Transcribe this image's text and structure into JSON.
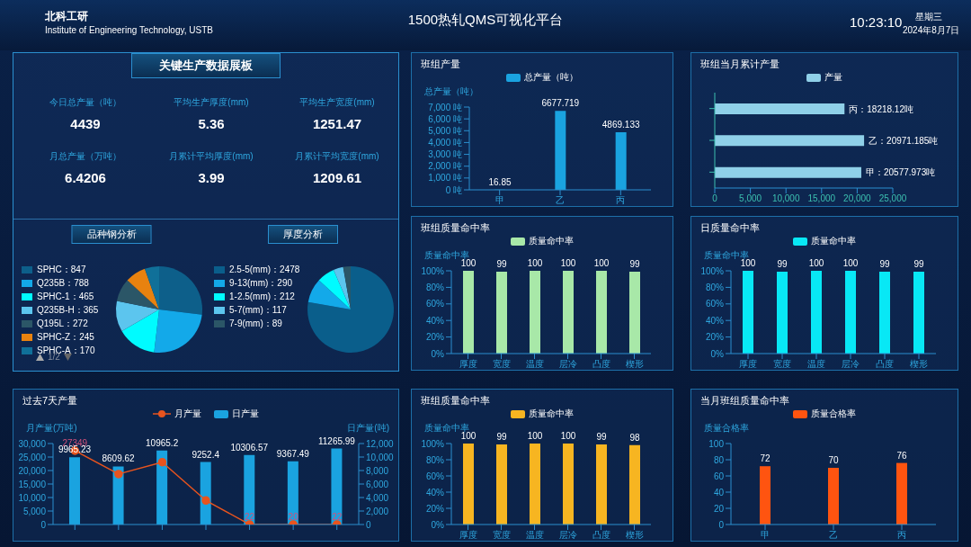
{
  "chart_data": [
    {
      "type": "other",
      "title": "1500热轧QMS可视化平台",
      "annotations": [
        "北科工研",
        "Institute of Engineering Technology, USTB",
        "10:23:10",
        "星期三",
        "2024年8月7日"
      ]
    },
    {
      "type": "other",
      "title": "关键生产数据展板",
      "annotations": [
        "今日总产量（吨）",
        "4439",
        "平均生产厚度(mm)",
        "5.36",
        "平均生产宽度(mm)",
        "1251.47",
        "月总产量（万吨）",
        "6.4206",
        "月累计平均厚度(mm)",
        "3.99",
        "月累计平均宽度(mm)",
        "1209.61"
      ]
    },
    {
      "type": "pie",
      "title": "品种钢分析",
      "categories": [
        "SPHC：847",
        "Q235B：788",
        "SPHC-1：465",
        "Q235B-H：365",
        "Q195L：272",
        "SPHC-Z：245",
        "SPHC-A：170"
      ],
      "values": [
        847,
        788,
        465,
        365,
        272,
        245,
        170
      ],
      "colors": [
        "#0d5f8a",
        "#13a9e9",
        "#00fbff",
        "#5cc5ee",
        "#2b5667",
        "#e8820f",
        "#107099"
      ],
      "legend": "left",
      "annotations": [
        "1/2"
      ]
    },
    {
      "type": "pie",
      "title": "厚度分析",
      "categories": [
        "2.5-5(mm)：2478",
        "9-13(mm)：290",
        "1-2.5(mm)：212",
        "5-7(mm)：117",
        "7-9(mm)：89"
      ],
      "values": [
        2478,
        290,
        212,
        117,
        89
      ],
      "colors": [
        "#0a5e8b",
        "#13a9e9",
        "#00fbff",
        "#5cc5ee",
        "#2b5667"
      ],
      "legend": "left"
    },
    {
      "type": "bar",
      "title": "班组产量",
      "ylabel": "总产量（吨）",
      "categories": [
        "甲",
        "乙",
        "丙"
      ],
      "series": [
        {
          "name": "总产量（吨）",
          "color": "#1aa3e0",
          "values": [
            16.85,
            6677.719,
            4869.133
          ]
        }
      ],
      "ylim": [
        0,
        7000
      ],
      "yticks": [
        {
          "value": 0,
          "label": "0 吨"
        },
        {
          "value": 1000,
          "label": "1,000 吨"
        },
        {
          "value": 2000,
          "label": "2,000 吨"
        },
        {
          "value": 3000,
          "label": "3,000 吨"
        },
        {
          "value": 4000,
          "label": "4,000 吨"
        },
        {
          "value": 5000,
          "label": "5,000 吨"
        },
        {
          "value": 6000,
          "label": "6,000 吨"
        },
        {
          "value": 7000,
          "label": "7,000 吨"
        }
      ],
      "data_labels": true,
      "legend": "top"
    },
    {
      "type": "bar",
      "orientation": "horizontal",
      "title": "班组当月累计产量",
      "categories": [
        null,
        null,
        null
      ],
      "series": [
        {
          "name": "产量",
          "color": "#8fd0e8",
          "values": [
            18218.12,
            20971.185,
            20577.973
          ],
          "value_labels": [
            "丙：18218.12吨",
            "乙：20971.185吨",
            "甲：20577.973吨"
          ]
        }
      ],
      "xlim": [
        0,
        25000
      ],
      "xticks": [
        0,
        {
          "value": 5000,
          "label": "5,000"
        },
        {
          "value": 10000,
          "label": "10,000"
        },
        {
          "value": 15000,
          "label": "15,000"
        },
        {
          "value": 20000,
          "label": "20,000"
        },
        {
          "value": 25000,
          "label": "25,000"
        }
      ],
      "legend": "top"
    },
    {
      "type": "bar",
      "title": "班组质量命中率",
      "ylabel": "质量命中率",
      "categories": [
        "厚度",
        "宽度",
        "温度",
        "层冷",
        "凸度",
        "楔形"
      ],
      "series": [
        {
          "name": "质量命中率",
          "color": "#a8e8a8",
          "values": [
            100,
            99,
            100,
            100,
            100,
            99
          ]
        }
      ],
      "ylim": [
        0,
        100
      ],
      "yticks": [
        {
          "value": 0,
          "label": "0%"
        },
        {
          "value": 20,
          "label": "20%"
        },
        {
          "value": 40,
          "label": "40%"
        },
        {
          "value": 60,
          "label": "60%"
        },
        {
          "value": 80,
          "label": "80%"
        },
        {
          "value": 100,
          "label": "100%"
        }
      ],
      "data_labels": true,
      "legend": "top"
    },
    {
      "type": "bar",
      "title": "日质量命中率",
      "ylabel": "质量命中率",
      "categories": [
        "厚度",
        "宽度",
        "温度",
        "层冷",
        "凸度",
        "楔形"
      ],
      "series": [
        {
          "name": "质量命中率",
          "color": "#08e8f5",
          "values": [
            100,
            99,
            100,
            100,
            99,
            99
          ]
        }
      ],
      "ylim": [
        0,
        100
      ],
      "yticks": [
        {
          "value": 0,
          "label": "0%"
        },
        {
          "value": 20,
          "label": "20%"
        },
        {
          "value": 40,
          "label": "40%"
        },
        {
          "value": 60,
          "label": "60%"
        },
        {
          "value": 80,
          "label": "80%"
        },
        {
          "value": 100,
          "label": "100%"
        }
      ],
      "data_labels": true,
      "legend": "top"
    },
    {
      "type": "bar",
      "title": "过去7天产量",
      "ylabel": "月产量(万吨)",
      "y2label": "日产量(吨)",
      "categories": [
        null,
        null,
        null,
        null,
        null,
        null,
        null
      ],
      "series": [
        {
          "name": "月产量",
          "type": "line",
          "color": "#e8541e",
          "values": [
            27349,
            18700,
            23100,
            8900,
            22,
            20,
            22
          ],
          "value_labels": [
            "27349",
            null,
            null,
            null,
            "22",
            "20",
            "22"
          ]
        },
        {
          "name": "日产量",
          "axis": "y2",
          "color": "#1aa3e0",
          "values": [
            9965.23,
            8609.62,
            10965.2,
            9252.4,
            10306.57,
            9367.49,
            11265.99
          ],
          "value_labels": [
            "9965.23",
            "8609.62",
            "10965.2",
            "9252.4",
            "10306.57",
            "9367.49",
            "11265.99"
          ]
        }
      ],
      "ylim": [
        0,
        30000
      ],
      "yticks": [
        0,
        {
          "value": 5000,
          "label": "5,000"
        },
        {
          "value": 10000,
          "label": "10,000"
        },
        {
          "value": 15000,
          "label": "15,000"
        },
        {
          "value": 20000,
          "label": "20,000"
        },
        {
          "value": 25000,
          "label": "25,000"
        },
        {
          "value": 30000,
          "label": "30,000"
        }
      ],
      "y2lim": [
        0,
        12000
      ],
      "y2ticks": [
        0,
        {
          "value": 2000,
          "label": "2,000"
        },
        {
          "value": 4000,
          "label": "4,000"
        },
        {
          "value": 6000,
          "label": "6,000"
        },
        {
          "value": 8000,
          "label": "8,000"
        },
        {
          "value": 10000,
          "label": "10,000"
        },
        {
          "value": 12000,
          "label": "12,000"
        }
      ],
      "marker": "circle",
      "legend": "top"
    },
    {
      "type": "bar",
      "title": "班组质量命中率",
      "ylabel": "质量命中率",
      "categories": [
        "厚度",
        "宽度",
        "温度",
        "层冷",
        "凸度",
        "楔形"
      ],
      "series": [
        {
          "name": "质量命中率",
          "color": "#f7b521",
          "values": [
            100,
            99,
            100,
            100,
            99,
            98
          ]
        }
      ],
      "ylim": [
        0,
        100
      ],
      "yticks": [
        {
          "value": 0,
          "label": "0%"
        },
        {
          "value": 20,
          "label": "20%"
        },
        {
          "value": 40,
          "label": "40%"
        },
        {
          "value": 60,
          "label": "60%"
        },
        {
          "value": 80,
          "label": "80%"
        },
        {
          "value": 100,
          "label": "100%"
        }
      ],
      "data_labels": true,
      "legend": "top"
    },
    {
      "type": "bar",
      "title": "当月班组质量命中率",
      "ylabel": "质量合格率",
      "categories": [
        "甲",
        "乙",
        "丙"
      ],
      "series": [
        {
          "name": "质量合格率",
          "color": "#ff5410",
          "values": [
            72,
            70,
            76
          ]
        }
      ],
      "ylim": [
        0,
        100
      ],
      "yticks": [
        0,
        20,
        40,
        60,
        80,
        100
      ],
      "data_labels": true,
      "legend": "top"
    }
  ]
}
